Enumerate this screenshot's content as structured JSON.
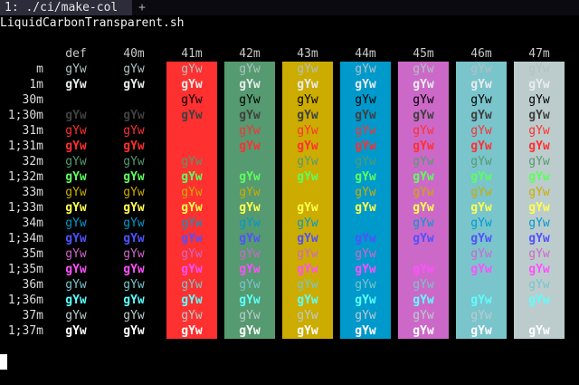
{
  "tabbar": {
    "active_tab": "1: ./ci/make-col",
    "new_tab": "+"
  },
  "terminal": {
    "command_output_title": "LiquidCarbonTransparent.sh",
    "sample_text": "gYw",
    "column_headers": [
      "def",
      "40m",
      "41m",
      "42m",
      "43m",
      "44m",
      "45m",
      "46m",
      "47m"
    ],
    "row_labels": [
      "m",
      "1m",
      "30m",
      "1;30m",
      "31m",
      "1;31m",
      "32m",
      "1;32m",
      "33m",
      "1;33m",
      "34m",
      "1;34m",
      "35m",
      "1;35m",
      "36m",
      "1;36m",
      "37m",
      "1;37m"
    ],
    "background_colors": [
      "#ff3030",
      "#559a70",
      "#ccac00",
      "#0099cc",
      "#cc69c8",
      "#7ac4cc",
      "#bccccc"
    ],
    "foreground_colors": {
      "m": "#afc2c2",
      "1m": "#e8ecec",
      "30m": "#000000",
      "1;30m": "#404040",
      "31m": "#ff3030",
      "1;31m": "#ff3030",
      "32m": "#559a70",
      "1;32m": "#5dff5d",
      "33m": "#ccac00",
      "1;33m": "#ffff4e",
      "34m": "#0099cc",
      "1;34m": "#5151ff",
      "35m": "#cc69c8",
      "1;35m": "#ff50ff",
      "36m": "#7ac4cc",
      "1;36m": "#5dffff",
      "37m": "#bccccc",
      "1;37m": "#ffffff"
    }
  }
}
